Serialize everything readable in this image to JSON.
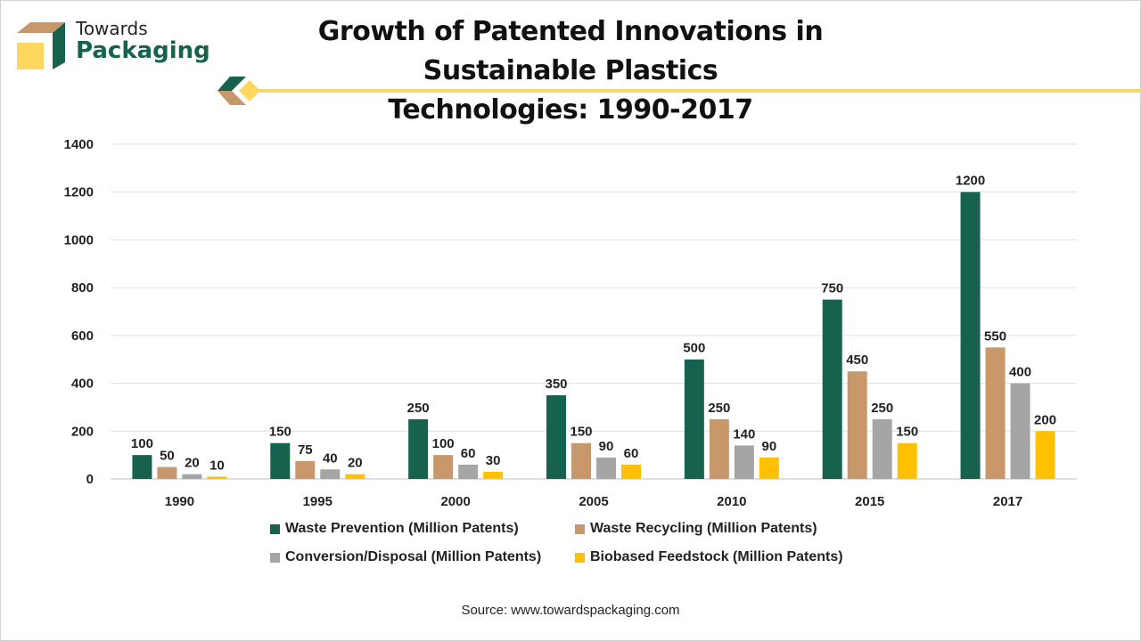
{
  "logo": {
    "line1": "Towards",
    "line2": "Packaging"
  },
  "source": "Source: www.towardspackaging.com",
  "chart_data": {
    "type": "bar",
    "title": "Growth of Patented Innovations in Sustainable Plastics Technologies: 1990-2017",
    "title_lines": [
      "Growth of Patented Innovations in Sustainable Plastics",
      "Technologies: 1990-2017"
    ],
    "categories": [
      "1990",
      "1995",
      "2000",
      "2005",
      "2010",
      "2015",
      "2017"
    ],
    "series": [
      {
        "name": "Waste Prevention (Million Patents)",
        "color": "#17624f",
        "values": [
          100,
          150,
          250,
          350,
          500,
          750,
          1200
        ]
      },
      {
        "name": "Waste Recycling (Million Patents)",
        "color": "#c9986a",
        "values": [
          50,
          75,
          100,
          150,
          250,
          450,
          550
        ]
      },
      {
        "name": "Conversion/Disposal (Million Patents)",
        "color": "#a5a5a5",
        "values": [
          20,
          40,
          60,
          90,
          140,
          250,
          400
        ]
      },
      {
        "name": "Biobased Feedstock (Million Patents)",
        "color": "#ffc000",
        "values": [
          10,
          20,
          30,
          60,
          90,
          150,
          200
        ]
      }
    ],
    "ylim": [
      0,
      1400
    ],
    "yticks": [
      0,
      200,
      400,
      600,
      800,
      1000,
      1200,
      1400
    ],
    "grid": true,
    "data_labels": true,
    "legend_position": "bottom"
  }
}
